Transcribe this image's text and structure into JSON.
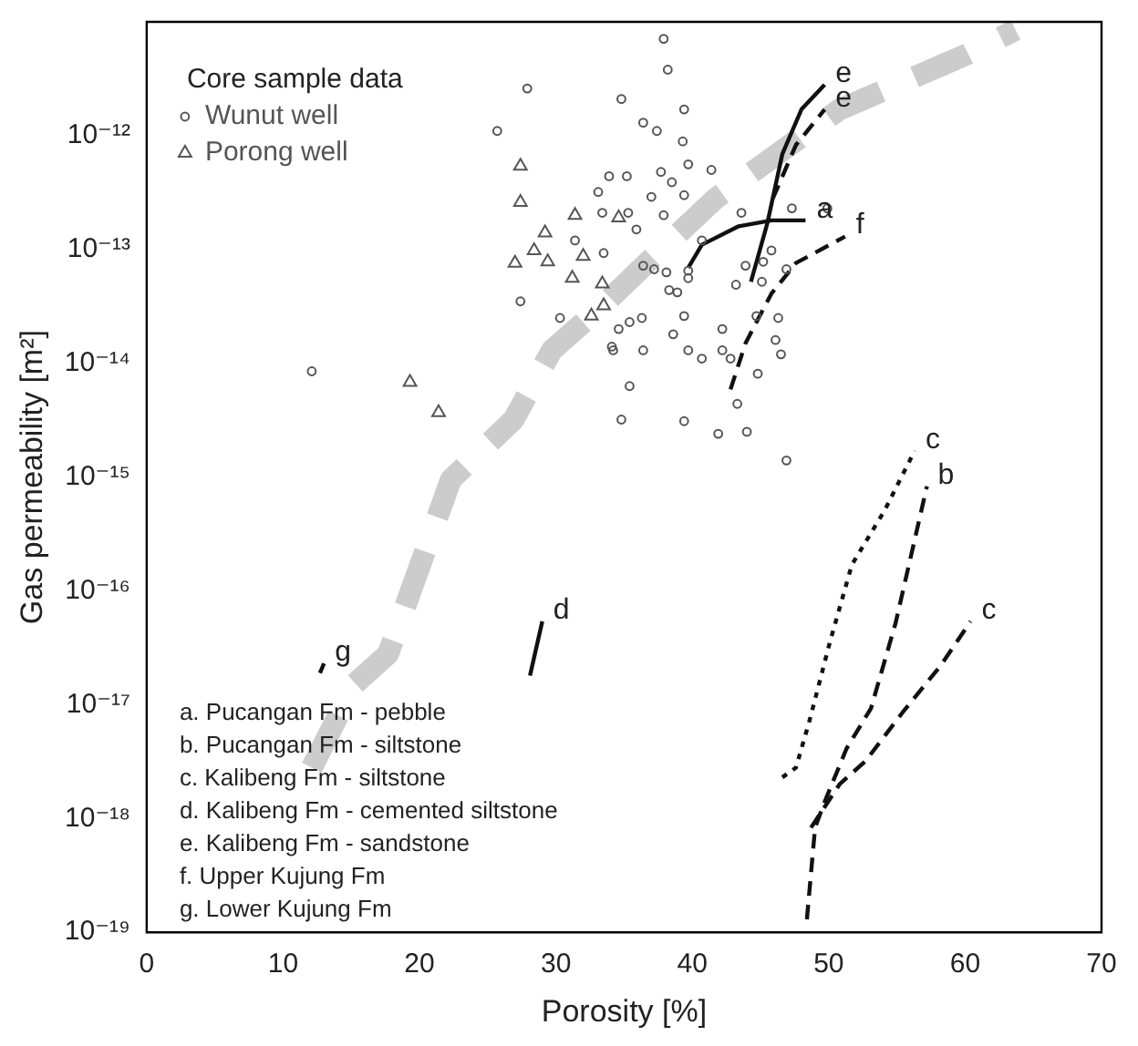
{
  "chart_data": {
    "type": "scatter",
    "xlabel": "Porosity [%]",
    "ylabel": "Gas permeability [m²]",
    "legend_title": "Core sample data",
    "legend": "top left",
    "grid": false,
    "log": "y",
    "xlim": [
      0,
      70
    ],
    "xticks": [
      0,
      10,
      20,
      30,
      40,
      50,
      60,
      70
    ],
    "ylim": [
      1e-19,
      1e-11
    ],
    "yticks": [
      {
        "value": 1e-19,
        "label": "10⁻¹⁹"
      },
      {
        "value": 1e-18,
        "label": "10⁻¹⁸"
      },
      {
        "value": 1e-17,
        "label": "10⁻¹⁷"
      },
      {
        "value": 1e-16,
        "label": "10⁻¹⁶"
      },
      {
        "value": 1e-15,
        "label": "10⁻¹⁵"
      },
      {
        "value": 1e-14,
        "label": "10⁻¹⁴"
      },
      {
        "value": 1e-13,
        "label": "10⁻¹³"
      },
      {
        "value": 1e-12,
        "label": "10⁻¹²"
      }
    ],
    "series": [
      {
        "name": "Wunut well",
        "type": "scatter",
        "marker": "circle",
        "color": "#555555",
        "x": [
          27.9,
          34.8,
          25.7,
          12.1,
          27.4,
          30.3,
          34.1,
          34.8,
          33.1,
          35.2,
          33.4,
          31.4,
          33.5,
          37.9,
          38.2,
          39.4,
          36.4,
          37.4,
          39.3,
          39.7,
          41.4,
          37.7,
          38.5,
          33.9,
          37.0,
          39.4,
          37.9,
          43.6,
          47.3,
          49.9,
          40.7,
          35.3,
          35.9,
          36.4,
          37.2,
          38.1,
          39.7,
          39.7,
          43.2,
          43.9,
          45.2,
          45.8,
          46.9,
          45.1,
          39.4,
          38.6,
          36.3,
          35.4,
          34.6,
          34.2,
          36.4,
          39.7,
          40.7,
          42.2,
          42.2,
          42.8,
          44.7,
          46.3,
          46.1,
          46.5,
          44.8,
          35.4,
          43.3,
          39.4,
          41.9,
          44.0,
          46.9,
          38.3,
          38.9
        ],
        "values": [
          2.6e-12,
          2.1e-12,
          1.1e-12,
          8.5e-15,
          3.5e-14,
          2.5e-14,
          1.4e-14,
          3.2e-15,
          3.2e-13,
          4.4e-13,
          2.1e-13,
          1.2e-13,
          9.3e-14,
          7.1e-12,
          3.8e-12,
          1.7e-12,
          1.3e-12,
          1.1e-12,
          8.9e-13,
          5.6e-13,
          5e-13,
          4.8e-13,
          3.9e-13,
          4.4e-13,
          2.9e-13,
          3e-13,
          2e-13,
          2.1e-13,
          2.3e-13,
          2.3e-13,
          1.2e-13,
          2.1e-13,
          1.5e-13,
          7.2e-14,
          6.7e-14,
          6.3e-14,
          6.5e-14,
          5.6e-14,
          4.9e-14,
          7.2e-14,
          7.8e-14,
          9.8e-14,
          6.7e-14,
          5.2e-14,
          2.6e-14,
          1.8e-14,
          2.5e-14,
          2.3e-14,
          2e-14,
          1.3e-14,
          1.3e-14,
          1.3e-14,
          1.1e-14,
          2e-14,
          1.3e-14,
          1.1e-14,
          2.6e-14,
          2.5e-14,
          1.6e-14,
          1.2e-14,
          8.1e-15,
          6.3e-15,
          4.4e-15,
          3.1e-15,
          2.4e-15,
          2.5e-15,
          1.4e-15,
          4.4e-14,
          4.2e-14
        ]
      },
      {
        "name": "Porong well",
        "type": "scatter",
        "marker": "triangle",
        "color": "#555555",
        "x": [
          27.4,
          27.4,
          31.4,
          29.2,
          34.6,
          28.4,
          29.4,
          27.0,
          32.0,
          31.2,
          33.4,
          33.5,
          32.6,
          19.3,
          21.4
        ],
        "values": [
          5.4e-13,
          2.6e-13,
          2e-13,
          1.4e-13,
          1.9e-13,
          9.8e-14,
          7.8e-14,
          7.6e-14,
          8.7e-14,
          5.6e-14,
          5e-14,
          3.2e-14,
          2.6e-14,
          6.8e-15,
          3.7e-15
        ]
      },
      {
        "type": "line",
        "line_style": "dashed",
        "marker": "none",
        "color": "#cccccc",
        "x": [
          12.1,
          15.2,
          17.7,
          21.0,
          22.3,
          26.9,
          29.7,
          33.4,
          37.0,
          41.7,
          50.8,
          60.0,
          63.7
        ],
        "values": [
          2.8e-18,
          1.5e-17,
          2.8e-17,
          3.5e-16,
          9.5e-16,
          3.2e-15,
          1.3e-14,
          3.2e-14,
          8.3e-14,
          2.8e-13,
          1.7e-12,
          5.1e-12,
          8.5e-12
        ]
      },
      {
        "type": "line",
        "line_style": "solid",
        "marker": "none",
        "color": "#111111",
        "x": [
          39.7,
          40.7,
          43.4,
          45.8,
          48.3
        ],
        "values": [
          6.9e-14,
          1.1e-13,
          1.6e-13,
          1.8e-13,
          1.8e-13
        ]
      },
      {
        "type": "line",
        "line_style": "solid",
        "marker": "none",
        "color": "#111111",
        "x": [
          44.3,
          45.5,
          46.6,
          48.0,
          49.7
        ],
        "values": [
          5.2e-14,
          1.7e-13,
          6.9e-13,
          1.7e-12,
          2.8e-12
        ]
      },
      {
        "type": "line",
        "line_style": "dashed",
        "marker": "none",
        "color": "#111111",
        "x": [
          45.9,
          47.6,
          49.7
        ],
        "values": [
          2.8e-13,
          8.3e-13,
          1.7e-12
        ]
      },
      {
        "type": "line",
        "line_style": "dashed",
        "marker": "none",
        "color": "#111111",
        "x": [
          42.8,
          43.9,
          45.8,
          47.6,
          51.2
        ],
        "values": [
          5.9e-15,
          1.5e-14,
          4.1e-14,
          7.6e-14,
          1.3e-13
        ]
      },
      {
        "type": "line",
        "line_style": "dotted",
        "marker": "none",
        "color": "#111111",
        "x": [
          46.6,
          47.6,
          48.6,
          50.1,
          51.7,
          54.1,
          56.3
        ],
        "values": [
          2.3e-18,
          2.8e-18,
          7.3e-18,
          3.6e-17,
          1.7e-16,
          5.1e-16,
          1.7e-15
        ]
      },
      {
        "type": "line",
        "line_style": "dashed",
        "marker": "none",
        "color": "#111111",
        "x": [
          48.4,
          49.0,
          49.7,
          51.3,
          53.1,
          54.9,
          57.2
        ],
        "values": [
          1.3e-19,
          8.3e-19,
          1.4e-18,
          4.1e-18,
          9.3e-18,
          5.2e-17,
          8.3e-16
        ]
      },
      {
        "type": "line",
        "line_style": "dashed",
        "marker": "none",
        "color": "#111111",
        "x": [
          48.7,
          50.8,
          52.7,
          55.4,
          58.2,
          60.4
        ],
        "values": [
          8.3e-19,
          2e-18,
          3.2e-18,
          8.5e-18,
          2.2e-17,
          5.4e-17
        ]
      },
      {
        "type": "line",
        "line_style": "solid",
        "marker": "none",
        "color": "#111111",
        "x": [
          28.1,
          29.0
        ],
        "values": [
          1.8e-17,
          5.4e-17
        ]
      },
      {
        "type": "line",
        "line_style": "solid",
        "marker": "none",
        "color": "#111111",
        "x": [
          12.7,
          13.0
        ],
        "values": [
          1.9e-17,
          2.3e-17
        ]
      }
    ],
    "annotations": [
      {
        "text": "e",
        "x": 49.7,
        "y": 2.8e-12
      },
      {
        "text": "e",
        "x": 49.7,
        "y": 1.7e-12
      },
      {
        "text": "a",
        "x": 48.3,
        "y": 1.8e-13
      },
      {
        "text": "f",
        "x": 51.2,
        "y": 1.3e-13
      },
      {
        "text": "c",
        "x": 56.3,
        "y": 1.7e-15
      },
      {
        "text": "b",
        "x": 57.2,
        "y": 8.3e-16
      },
      {
        "text": "c",
        "x": 60.4,
        "y": 5.4e-17
      },
      {
        "text": "d",
        "x": 29.0,
        "y": 5.4e-17
      },
      {
        "text": "g",
        "x": 13.0,
        "y": 2.3e-17
      },
      "a. Pucangan Fm - pebble",
      "b. Pucangan Fm - siltstone",
      "c. Kalibeng Fm - siltstone",
      "d. Kalibeng Fm - cemented siltstone",
      "e. Kalibeng Fm - sandstone",
      "f. Upper Kujung Fm",
      "g. Lower Kujung Fm"
    ]
  }
}
